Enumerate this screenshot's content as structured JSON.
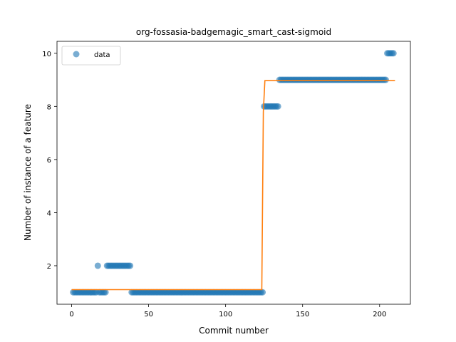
{
  "chart_data": {
    "type": "scatter",
    "title": "org-fossasia-badgemagic_smart_cast-sigmoid",
    "xlabel": "Commit number",
    "ylabel": "Number of instance of a feature",
    "xlim": [
      -9.5,
      220
    ],
    "ylim": [
      0.55,
      10.45
    ],
    "xticks": [
      0,
      50,
      100,
      150,
      200
    ],
    "yticks": [
      2,
      4,
      6,
      8,
      10
    ],
    "grid": false,
    "legend_position": "upper-left",
    "series": [
      {
        "name": "data",
        "kind": "scatter",
        "color": "#1f77b4",
        "segments": [
          {
            "x_start": 1,
            "x_end": 16,
            "y": 1
          },
          {
            "x_start": 17,
            "x_end": 17,
            "y": 2
          },
          {
            "x_start": 18,
            "x_end": 22,
            "y": 1
          },
          {
            "x_start": 23,
            "x_end": 38,
            "y": 2
          },
          {
            "x_start": 39,
            "x_end": 124,
            "y": 1
          },
          {
            "x_start": 125,
            "x_end": 134,
            "y": 8
          },
          {
            "x_start": 135,
            "x_end": 204,
            "y": 9
          },
          {
            "x_start": 205,
            "x_end": 209,
            "y": 10
          }
        ]
      },
      {
        "name": "",
        "kind": "line",
        "color": "#ff7f0e",
        "points": [
          [
            0,
            1.1
          ],
          [
            123.5,
            1.1
          ],
          [
            124.5,
            7.8
          ],
          [
            125.5,
            8.97
          ],
          [
            210,
            8.97
          ]
        ]
      }
    ]
  }
}
